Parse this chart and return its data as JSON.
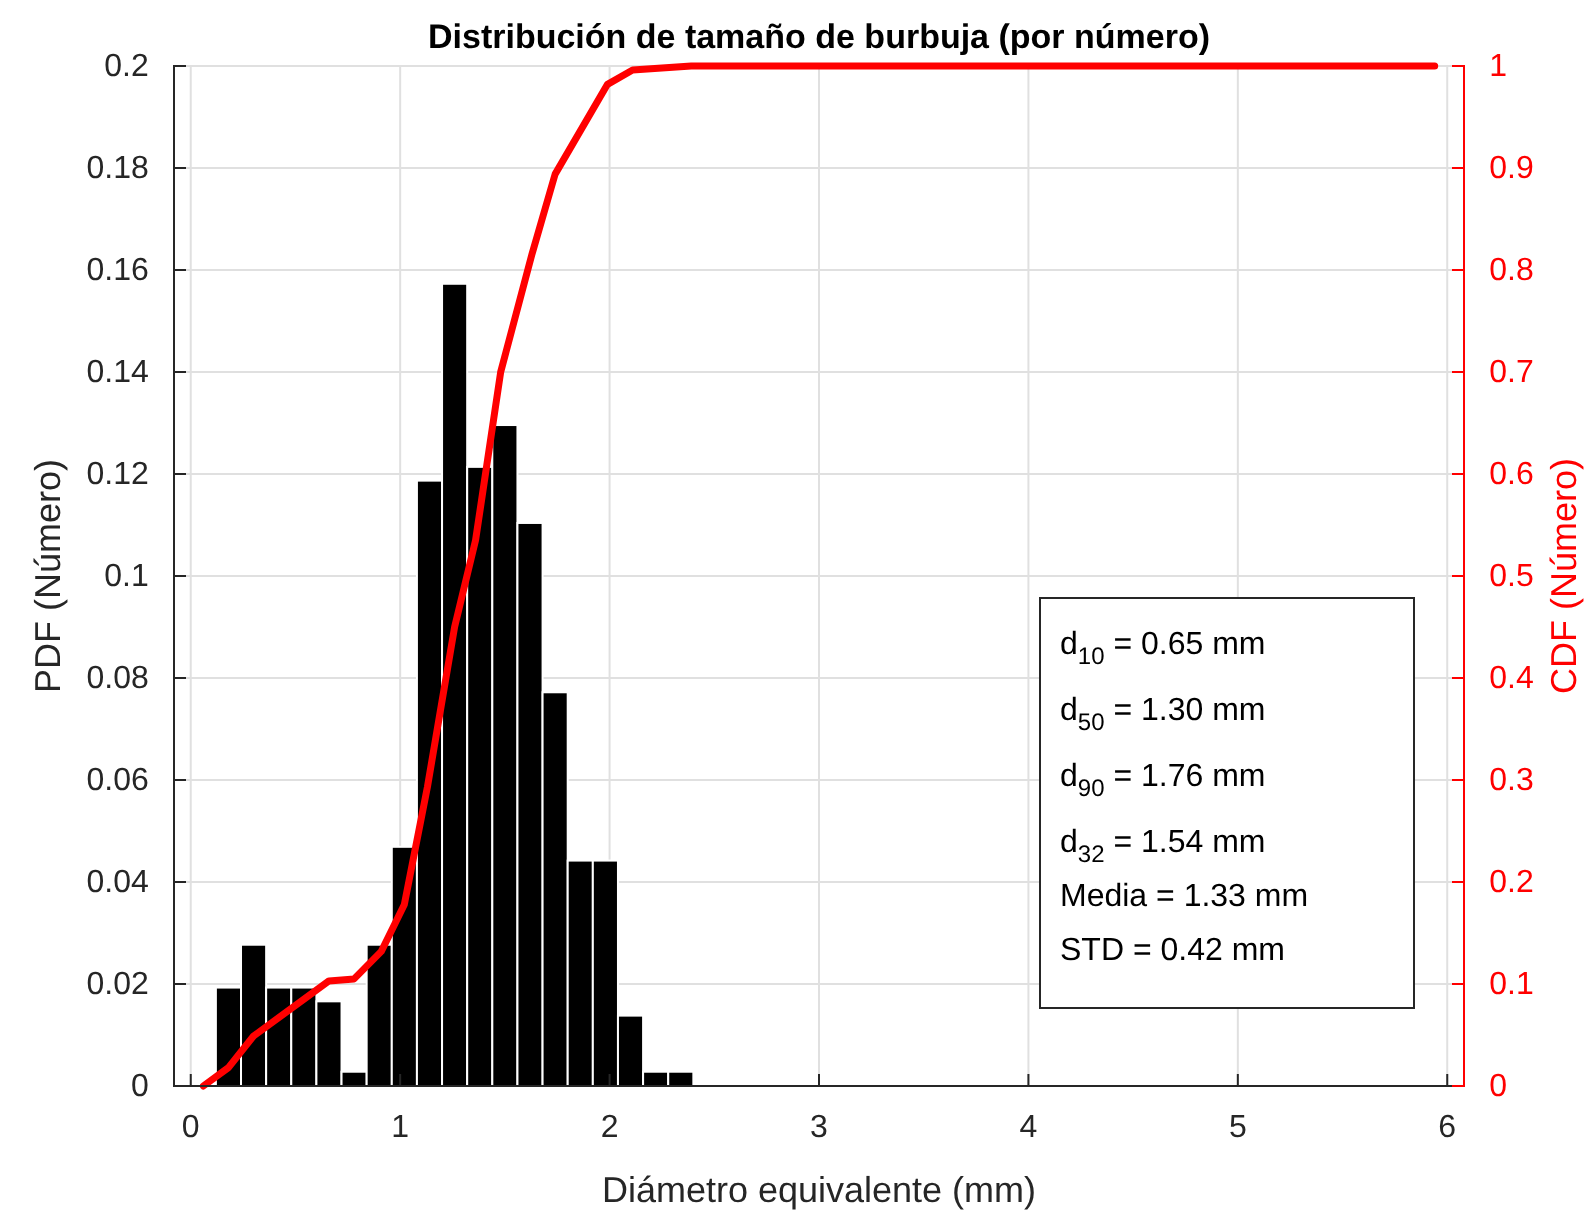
{
  "chart_data": {
    "type": "histogram",
    "title": "Distribución de tamaño de burbuja (por número)",
    "xlabel": "Diámetro equivalente (mm)",
    "ylabel": "PDF (Número)",
    "y2label": "CDF (Número)",
    "bins": [
      0.12,
      0.24,
      0.36,
      0.48,
      0.6,
      0.72,
      0.84,
      0.96,
      1.08,
      1.2,
      1.32,
      1.44,
      1.56,
      1.68,
      1.8,
      1.92,
      2.04,
      2.16,
      2.28,
      2.4
    ],
    "values": [
      0.0193,
      0.0277,
      0.0193,
      0.0193,
      0.0166,
      0.0028,
      0.0277,
      0.0469,
      0.1187,
      0.1573,
      0.1214,
      0.1296,
      0.1104,
      0.0772,
      0.0442,
      0.0442,
      0.0138,
      0.0028,
      0.0028
    ],
    "color": "#000000",
    "series": [
      {
        "type": "line",
        "axis": "y2",
        "color": "#ff0000",
        "x": [
          0.06,
          0.18,
          0.3,
          0.66,
          0.78,
          0.91,
          1.02,
          1.13,
          1.26,
          1.36,
          1.48,
          1.63,
          1.74,
          1.99,
          2.11,
          2.39,
          5.94
        ],
        "values": [
          0,
          0.018,
          0.049,
          0.103,
          0.105,
          0.132,
          0.178,
          0.293,
          0.45,
          0.535,
          0.7,
          0.816,
          0.894,
          0.982,
          0.996,
          1,
          1
        ]
      }
    ],
    "xlim": [
      -0.08,
      6.08
    ],
    "xticks": [
      0,
      1,
      2,
      3,
      4,
      5,
      6
    ],
    "ylim": [
      0,
      0.2
    ],
    "yticks": [
      0,
      0.02,
      0.04,
      0.06,
      0.08,
      0.1,
      0.12,
      0.14,
      0.16,
      0.18,
      0.2
    ],
    "y2lim": [
      0,
      1
    ],
    "y2ticks": [
      0,
      0.1,
      0.2,
      0.3,
      0.4,
      0.5,
      0.6,
      0.7,
      0.8,
      0.9,
      1
    ],
    "grid": true,
    "annotations": [
      "d$_{10}$ = 0.65 mm",
      "d$_{50}$ = 1.30 mm",
      "d$_{90}$ = 1.76 mm",
      "d$_{32}$ = 1.54 mm",
      "Media = 1.33 mm",
      "STD = 0.42 mm"
    ]
  }
}
